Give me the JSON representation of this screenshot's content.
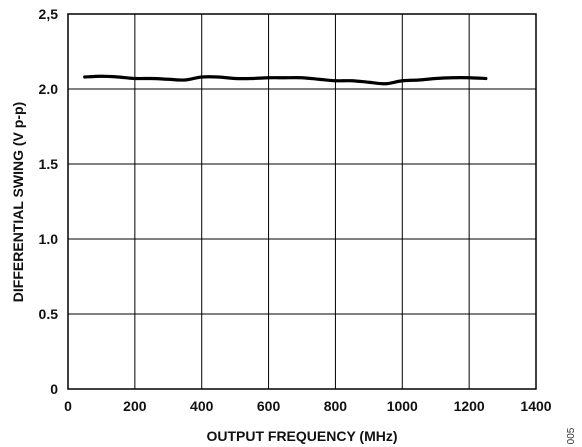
{
  "chart_data": {
    "type": "line",
    "xlabel": "OUTPUT FREQUENCY (MHz)",
    "ylabel": "DIFFERENTIAL SWING (V p-p)",
    "xlim": [
      0,
      1400
    ],
    "ylim": [
      0,
      2.5
    ],
    "x_ticks": [
      0,
      200,
      400,
      600,
      800,
      1000,
      1200,
      1400
    ],
    "y_ticks": [
      "0",
      "0.5",
      "1.0",
      "1.5",
      "2.0",
      "2,5"
    ],
    "grid": true,
    "series": [
      {
        "x": [
          50,
          100,
          150,
          200,
          250,
          300,
          350,
          400,
          450,
          500,
          550,
          600,
          650,
          700,
          750,
          800,
          850,
          900,
          950,
          1000,
          1050,
          1100,
          1150,
          1200,
          1250
        ],
        "y": [
          2.08,
          2.085,
          2.08,
          2.07,
          2.07,
          2.065,
          2.06,
          2.08,
          2.08,
          2.07,
          2.07,
          2.075,
          2.075,
          2.075,
          2.065,
          2.055,
          2.055,
          2.045,
          2.035,
          2.055,
          2.06,
          2.07,
          2.075,
          2.075,
          2.07
        ]
      }
    ],
    "side_note": "005"
  }
}
